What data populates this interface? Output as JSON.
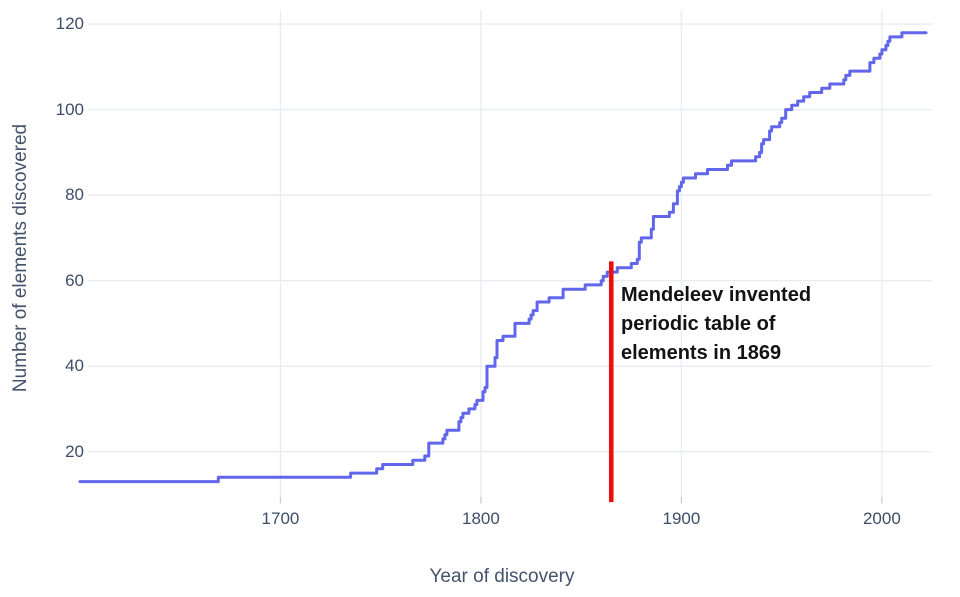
{
  "chart_data": {
    "type": "line",
    "mode": "step-after",
    "title": "",
    "xlabel": "Year of discovery",
    "ylabel": "Number of elements discovered",
    "x_range": [
      1600,
      2023
    ],
    "y_range": [
      9.4,
      123.3
    ],
    "x_ticks": [
      1700,
      1800,
      1900,
      2000
    ],
    "y_ticks": [
      20,
      40,
      60,
      80,
      100,
      120
    ],
    "grid": true,
    "legend": "none",
    "line_color": "#6266ea",
    "grid_color": "#e9ecf2",
    "tick_mark_color": "#c7ccd6",
    "tick_label_color": "#3e4d66",
    "background_color": "#ffffff",
    "initial_value": 13,
    "end_year": 2022,
    "steps": [
      [
        1669,
        14
      ],
      [
        1735,
        15
      ],
      [
        1748,
        16
      ],
      [
        1751,
        17
      ],
      [
        1766,
        18
      ],
      [
        1772,
        19
      ],
      [
        1774,
        22
      ],
      [
        1781,
        23
      ],
      [
        1782,
        24
      ],
      [
        1783,
        25
      ],
      [
        1789,
        27
      ],
      [
        1790,
        28
      ],
      [
        1791,
        29
      ],
      [
        1794,
        30
      ],
      [
        1797,
        31
      ],
      [
        1798,
        32
      ],
      [
        1801,
        34
      ],
      [
        1802,
        35
      ],
      [
        1803,
        40
      ],
      [
        1807,
        42
      ],
      [
        1808,
        46
      ],
      [
        1811,
        47
      ],
      [
        1817,
        50
      ],
      [
        1824,
        51
      ],
      [
        1825,
        52
      ],
      [
        1826,
        53
      ],
      [
        1828,
        55
      ],
      [
        1834,
        56
      ],
      [
        1841,
        58
      ],
      [
        1852,
        59
      ],
      [
        1860,
        60
      ],
      [
        1861,
        61
      ],
      [
        1863,
        62
      ],
      [
        1868,
        63
      ],
      [
        1875,
        64
      ],
      [
        1878,
        65
      ],
      [
        1879,
        69
      ],
      [
        1880,
        70
      ],
      [
        1885,
        72
      ],
      [
        1886,
        75
      ],
      [
        1894,
        76
      ],
      [
        1896,
        78
      ],
      [
        1898,
        81
      ],
      [
        1899,
        82
      ],
      [
        1900,
        83
      ],
      [
        1901,
        84
      ],
      [
        1907,
        85
      ],
      [
        1913,
        86
      ],
      [
        1923,
        87
      ],
      [
        1925,
        88
      ],
      [
        1937,
        89
      ],
      [
        1939,
        90
      ],
      [
        1940,
        92
      ],
      [
        1941,
        93
      ],
      [
        1944,
        95
      ],
      [
        1945,
        96
      ],
      [
        1949,
        97
      ],
      [
        1950,
        98
      ],
      [
        1952,
        100
      ],
      [
        1955,
        101
      ],
      [
        1958,
        102
      ],
      [
        1961,
        103
      ],
      [
        1964,
        104
      ],
      [
        1970,
        105
      ],
      [
        1974,
        106
      ],
      [
        1981,
        107
      ],
      [
        1982,
        108
      ],
      [
        1984,
        109
      ],
      [
        1994,
        111
      ],
      [
        1996,
        112
      ],
      [
        1999,
        113
      ],
      [
        2000,
        114
      ],
      [
        2002,
        115
      ],
      [
        2003,
        116
      ],
      [
        2004,
        117
      ],
      [
        2010,
        118
      ]
    ],
    "annotation": {
      "lines": [
        "Mendeleev invented",
        "periodic table of",
        "elements in 1869"
      ],
      "text_color": "#131313",
      "line_year": 1865,
      "line_color": "#e8120d",
      "line_top_value": 64.5,
      "line_bottom_value": 8.2
    }
  }
}
